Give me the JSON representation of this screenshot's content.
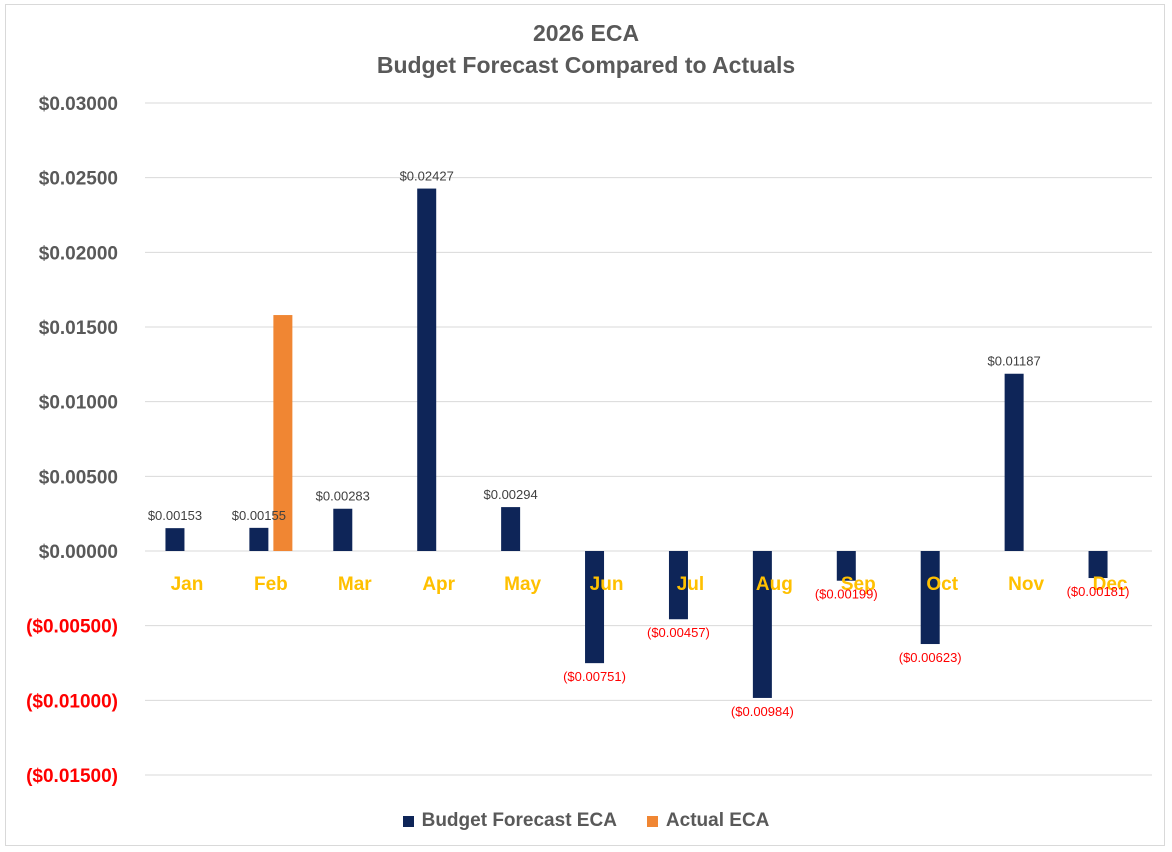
{
  "chart_data": {
    "type": "bar",
    "title": "2026 ECA",
    "subtitle": "Budget Forecast Compared to Actuals",
    "categories": [
      "Jan",
      "Feb",
      "Mar",
      "Apr",
      "May",
      "Jun",
      "Jul",
      "Aug",
      "Sep",
      "Oct",
      "Nov",
      "Dec"
    ],
    "series": [
      {
        "name": "Budget Forecast ECA",
        "color": "#0e2558",
        "values": [
          0.00153,
          0.00155,
          0.00283,
          0.02427,
          0.00294,
          -0.00751,
          -0.00457,
          -0.00984,
          -0.00199,
          -0.00623,
          0.01187,
          -0.00181
        ],
        "labels": [
          "$0.00153",
          "$0.00155",
          "$0.00283",
          "$0.02427",
          "$0.00294",
          "($0.00751)",
          "($0.00457)",
          "($0.00984)",
          "($0.00199)",
          "($0.00623)",
          "$0.01187",
          "($0.00181)"
        ]
      },
      {
        "name": "Actual ECA",
        "color": "#f08633",
        "values": [
          null,
          0.0158,
          null,
          null,
          null,
          null,
          null,
          null,
          null,
          null,
          null,
          null
        ]
      }
    ],
    "ylim": [
      -0.015,
      0.03
    ],
    "yticks": [
      0.03,
      0.025,
      0.02,
      0.015,
      0.01,
      0.005,
      0,
      -0.005,
      -0.01,
      -0.015
    ],
    "ytick_labels": [
      "$0.03000",
      "$0.02500",
      "$0.02000",
      "$0.01500",
      "$0.01000",
      "$0.00500",
      "$0.00000",
      "($0.00500)",
      "($0.01000)",
      "($0.01500)"
    ],
    "grid": true,
    "legend": "bottom",
    "colors": {
      "category_label": "#ffc000",
      "positive_text": "#404040",
      "negative_text": "#ff0000",
      "gridline": "#d9d9d9"
    }
  }
}
